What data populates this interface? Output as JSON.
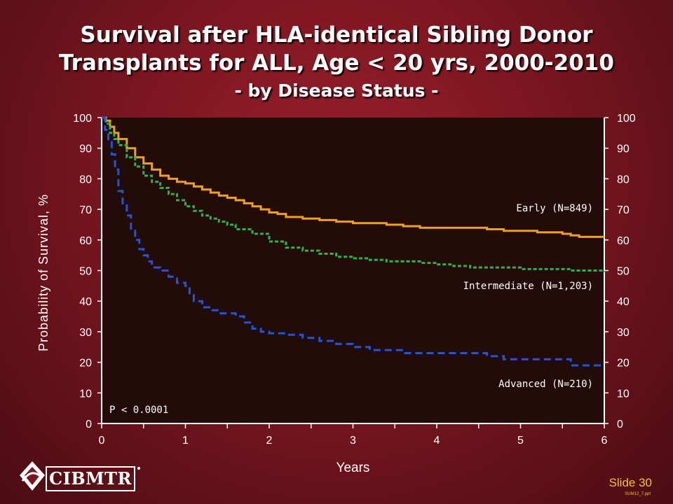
{
  "title": {
    "line1": "Survival after HLA-identical Sibling Donor",
    "line2": "Transplants for ALL, Age < 20 yrs, 2000-2010",
    "line3": "- by Disease Status -"
  },
  "footer": {
    "logo_text": "CIBMTR",
    "slide_label": "Slide 30",
    "file_tag": "SUM12_7.ppt"
  },
  "colors": {
    "plot_bg": "#220b09",
    "early": "#f0a020",
    "intermediate": "#2eb34a",
    "advanced": "#1f56e0",
    "axis": "#ffffff"
  },
  "chart_data": {
    "type": "line",
    "title": "Survival after HLA-identical Sibling Donor Transplants for ALL, Age < 20 yrs, 2000-2010 - by Disease Status -",
    "xlabel": "Years",
    "ylabel": "Probability of Survival, %",
    "xlim": [
      0,
      6
    ],
    "ylim": [
      0,
      100
    ],
    "xticks": [
      0,
      1,
      2,
      3,
      4,
      5,
      6
    ],
    "yticks": [
      0,
      10,
      20,
      30,
      40,
      50,
      60,
      70,
      80,
      90,
      100
    ],
    "right_axis": true,
    "grid": false,
    "annotation": "P < 0.0001",
    "series": [
      {
        "name": "Early (N=849)",
        "style": "solid",
        "x": [
          0,
          0.05,
          0.1,
          0.15,
          0.2,
          0.3,
          0.4,
          0.5,
          0.6,
          0.7,
          0.8,
          0.9,
          1.0,
          1.1,
          1.2,
          1.3,
          1.4,
          1.5,
          1.6,
          1.7,
          1.8,
          1.9,
          2.0,
          2.1,
          2.2,
          2.4,
          2.6,
          2.8,
          3.0,
          3.2,
          3.4,
          3.6,
          3.8,
          4.0,
          4.2,
          4.4,
          4.6,
          4.8,
          5.0,
          5.2,
          5.4,
          5.5,
          5.6,
          5.7,
          5.8,
          6.0
        ],
        "y": [
          100,
          99,
          97,
          95,
          93,
          90,
          87,
          85,
          83,
          81,
          80,
          79,
          78.5,
          77.5,
          76.5,
          75.5,
          74.5,
          73.8,
          73,
          72,
          71,
          70,
          69,
          68.5,
          67.5,
          67,
          66.5,
          66,
          65.5,
          65.5,
          65,
          64.5,
          64,
          64,
          64,
          64,
          63.5,
          63,
          63,
          62.5,
          62.5,
          62,
          61.5,
          61,
          61,
          61
        ]
      },
      {
        "name": "Intermediate (N=1,203)",
        "style": "dashed",
        "x": [
          0,
          0.05,
          0.1,
          0.15,
          0.2,
          0.3,
          0.4,
          0.5,
          0.6,
          0.7,
          0.8,
          0.9,
          1.0,
          1.1,
          1.2,
          1.3,
          1.4,
          1.5,
          1.6,
          1.8,
          2.0,
          2.2,
          2.4,
          2.6,
          2.8,
          3.0,
          3.2,
          3.4,
          3.6,
          3.8,
          4.0,
          4.2,
          4.4,
          4.6,
          4.8,
          5.0,
          5.2,
          5.4,
          5.6,
          5.8,
          6.0
        ],
        "y": [
          100,
          98,
          95,
          93,
          91,
          87,
          84,
          81,
          79,
          77,
          75,
          73,
          71,
          69.5,
          68,
          67,
          66,
          65,
          63.5,
          62,
          59.5,
          57.5,
          56.5,
          55.5,
          54.5,
          54,
          53.5,
          53,
          53,
          52.5,
          52,
          51.5,
          51,
          51,
          51,
          50.5,
          50.5,
          50.5,
          50,
          50,
          49.5
        ]
      },
      {
        "name": "Advanced (N=210)",
        "style": "dashed",
        "x": [
          0,
          0.04,
          0.08,
          0.12,
          0.16,
          0.2,
          0.25,
          0.3,
          0.35,
          0.4,
          0.45,
          0.5,
          0.55,
          0.6,
          0.7,
          0.8,
          0.9,
          1.0,
          1.05,
          1.1,
          1.2,
          1.3,
          1.4,
          1.6,
          1.7,
          1.8,
          1.9,
          2.0,
          2.2,
          2.4,
          2.6,
          2.8,
          3.0,
          3.2,
          3.4,
          3.6,
          3.8,
          4.0,
          4.2,
          4.4,
          4.6,
          4.8,
          5.0,
          5.2,
          5.4,
          5.6,
          5.8,
          6.0
        ],
        "y": [
          100,
          96,
          92,
          88,
          83,
          76,
          72,
          68,
          63,
          60,
          57,
          55,
          53,
          51,
          50,
          48,
          46,
          45,
          42,
          40,
          38,
          37,
          36,
          35,
          33,
          31,
          30,
          29.5,
          29,
          28,
          27,
          26,
          25,
          24,
          24,
          23,
          23,
          23,
          23,
          23,
          22,
          21,
          21,
          21,
          21,
          19,
          19,
          19
        ]
      }
    ]
  }
}
